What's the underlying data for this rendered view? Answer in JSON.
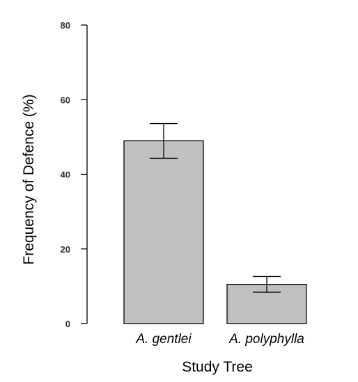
{
  "chart_data": {
    "type": "bar",
    "title": "",
    "xlabel": "Study Tree",
    "ylabel": "Frequency of Defence (%)",
    "categories": [
      "A. gentlei",
      "A. polyphylla"
    ],
    "values": [
      49,
      10.5
    ],
    "error_low": [
      44.3,
      8.4
    ],
    "error_high": [
      53.6,
      12.6
    ],
    "ylim": [
      0,
      80
    ],
    "yticks": [
      "0",
      "20",
      "40",
      "60",
      "80"
    ],
    "grid": false,
    "legend": "none",
    "bar_color": "#c0c0c0",
    "bar_edge_color": "#000000"
  }
}
